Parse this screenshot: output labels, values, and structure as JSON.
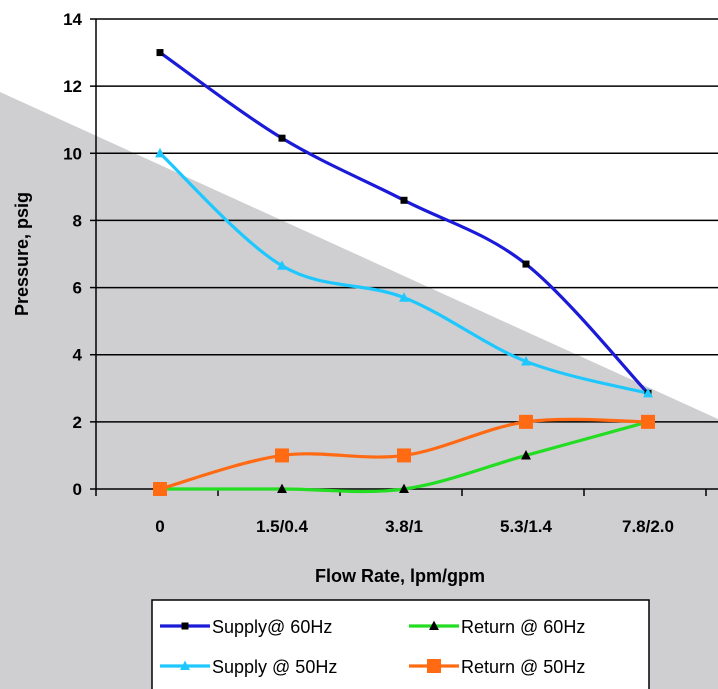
{
  "chart_data": {
    "type": "line",
    "title": "",
    "xlabel": "Flow Rate, lpm/gpm",
    "ylabel": "Pressure, psig",
    "categories": [
      "0",
      "1.5/0.4",
      "3.8/1",
      "5.3/1.4",
      "7.8/2.0"
    ],
    "ylim": [
      0,
      14
    ],
    "yticks": [
      0,
      2,
      4,
      6,
      8,
      10,
      12,
      14
    ],
    "grid": true,
    "smooth": true,
    "legend_position": "bottom",
    "series": [
      {
        "name": "Supply@ 60Hz",
        "values": [
          13.0,
          10.45,
          8.6,
          6.7,
          2.85
        ],
        "color": "#1a1ad8",
        "marker": "square",
        "marker_color": "#000000"
      },
      {
        "name": "Supply @ 50Hz",
        "values": [
          10.0,
          6.65,
          5.7,
          3.8,
          2.85
        ],
        "color": "#1ec8ff",
        "marker": "triangle",
        "marker_color": "#1ec8ff"
      },
      {
        "name": "Return @ 60Hz",
        "values": [
          0,
          0,
          0,
          1.0,
          2.0
        ],
        "color": "#22dd22",
        "marker": "triangle",
        "marker_color": "#000000"
      },
      {
        "name": "Return @ 50Hz",
        "values": [
          0,
          1.0,
          1.0,
          2.0,
          2.0
        ],
        "color": "#ff6a12",
        "marker": "square",
        "marker_color": "#ff6a12"
      }
    ],
    "legend_order": [
      0,
      2,
      1,
      3
    ]
  },
  "colors": {
    "background_band": "#cfcfd1",
    "grid": "#000000",
    "axis": "#000000"
  }
}
